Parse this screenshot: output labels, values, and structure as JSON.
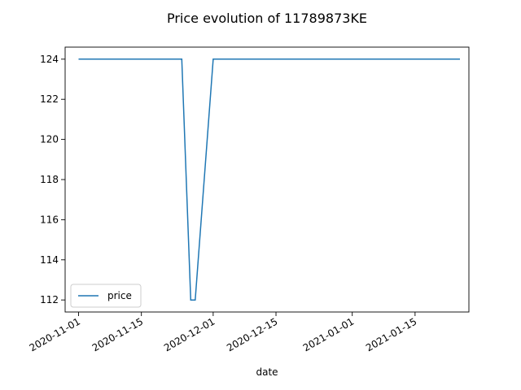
{
  "chart_data": {
    "type": "line",
    "title": "Price evolution of 11789873KE",
    "xlabel": "date",
    "ylabel": "",
    "x_type": "date",
    "xlim": [
      "2020-10-29",
      "2021-01-27"
    ],
    "ylim": [
      111.4,
      124.6
    ],
    "x_ticks": [
      "2020-11-01",
      "2020-11-15",
      "2020-12-01",
      "2020-12-15",
      "2021-01-01",
      "2021-01-15"
    ],
    "y_ticks": [
      112,
      114,
      116,
      118,
      120,
      122,
      124
    ],
    "legend": "lower-left",
    "grid": false,
    "series": [
      {
        "name": "price",
        "color": "#1f77b4",
        "x": [
          "2020-11-01",
          "2020-11-24",
          "2020-11-26",
          "2020-11-27",
          "2020-12-01",
          "2021-01-25"
        ],
        "y": [
          124,
          124,
          112,
          112,
          124,
          124
        ]
      }
    ]
  }
}
